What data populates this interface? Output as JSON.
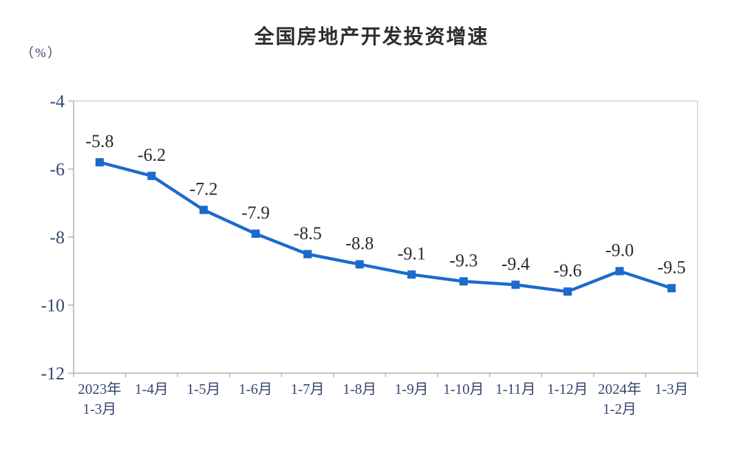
{
  "title": "全国房地产开发投资增速",
  "unit_label": "（%）",
  "colors": {
    "line": "#1b6ace",
    "marker": "#1b6ace",
    "axis_label": "#35466f",
    "data_label": "#2b2b2b",
    "title": "#2e2e2e",
    "plot_border": "#d2d2d2",
    "axis_line": "#b5b5b5",
    "tick": "#b5b5b5"
  },
  "chart_data": {
    "type": "line",
    "title": "全国房地产开发投资增速",
    "xlabel": "",
    "ylabel": "（%）",
    "categories": [
      "2023年\n1-3月",
      "1-4月",
      "1-5月",
      "1-6月",
      "1-7月",
      "1-8月",
      "1-9月",
      "1-10月",
      "1-11月",
      "1-12月",
      "2024年\n1-2月",
      "1-3月"
    ],
    "values": [
      -5.8,
      -6.2,
      -7.2,
      -7.9,
      -8.5,
      -8.8,
      -9.1,
      -9.3,
      -9.4,
      -9.6,
      -9.0,
      -9.5
    ],
    "data_labels": [
      "-5.8",
      "-6.2",
      "-7.2",
      "-7.9",
      "-8.5",
      "-8.8",
      "-9.1",
      "-9.3",
      "-9.4",
      "-9.6",
      "-9.0",
      "-9.5"
    ],
    "ylim": [
      -12,
      -4
    ],
    "yticks": [
      -4,
      -6,
      -8,
      -10,
      -12
    ],
    "grid": false,
    "legend_position": "none",
    "marker": "square"
  }
}
